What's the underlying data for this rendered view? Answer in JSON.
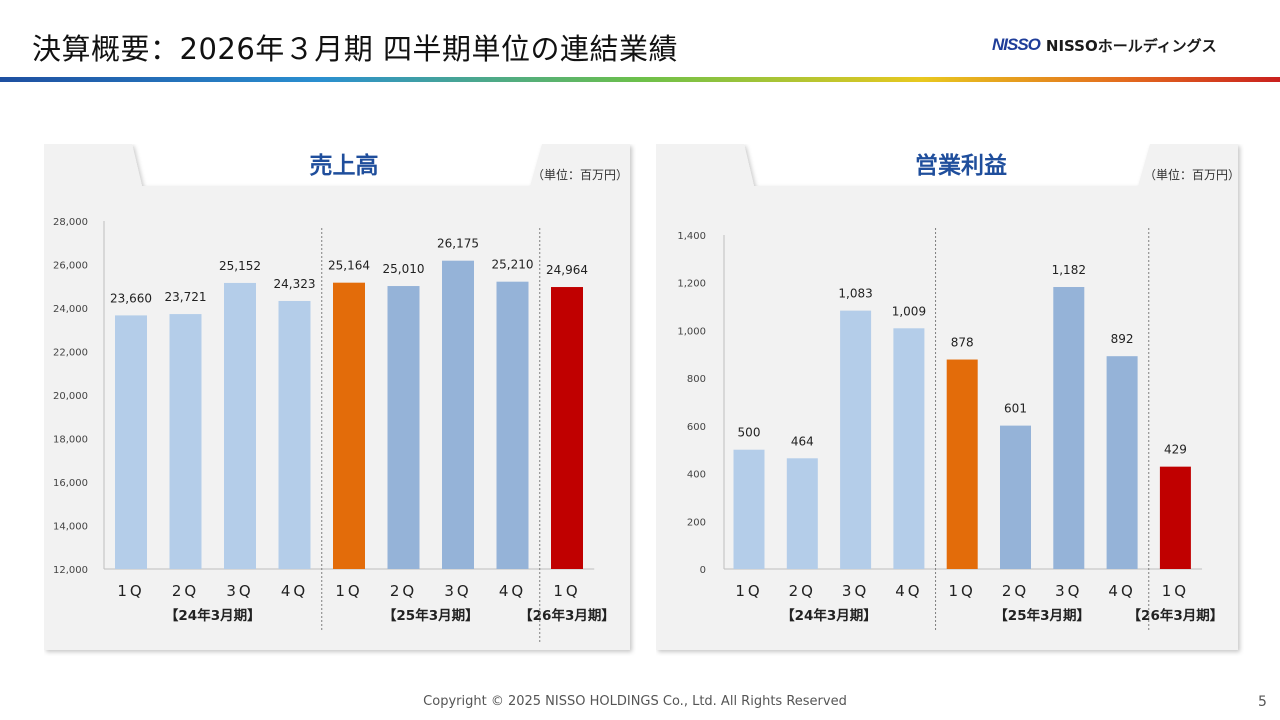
{
  "header": {
    "title": "決算概要：2026年３月期 四半期単位の連結業績",
    "logo_mark": "NISSO",
    "logo_text": "NISSOホールディングス"
  },
  "footer": {
    "copyright": "Copyright © 2025 NISSO HOLDINGS Co., Ltd. All Rights Reserved",
    "page": "5"
  },
  "colors": {
    "fy24": "#b4cde9",
    "fy25": "#95b3d8",
    "fy25_highlight": "#e36c0a",
    "fy26": "#c00000",
    "title_text": "#1f4e9c"
  },
  "chart_data": [
    {
      "type": "bar",
      "title": "売上高",
      "unit": "（単位：百万円）",
      "categories": [
        "1Q",
        "2Q",
        "3Q",
        "4Q",
        "1Q",
        "2Q",
        "3Q",
        "4Q",
        "1Q"
      ],
      "category_labels": [
        "1Q",
        "2Q",
        "3Q",
        "4Q",
        "1Q",
        "2Q",
        "3Q",
        "4Q",
        "1Q"
      ],
      "values": [
        23660,
        23721,
        25152,
        24323,
        25164,
        25010,
        26175,
        25210,
        24964
      ],
      "value_labels": [
        "23,660",
        "23,721",
        "25,152",
        "24,323",
        "25,164",
        "25,010",
        "26,175",
        "25,210",
        "24,964"
      ],
      "bar_colors": [
        "fy24",
        "fy24",
        "fy24",
        "fy24",
        "fy25_highlight",
        "fy25",
        "fy25",
        "fy25",
        "fy26"
      ],
      "groups": [
        {
          "label": "【24年3月期】",
          "start": 0,
          "end": 3
        },
        {
          "label": "【25年3月期】",
          "start": 4,
          "end": 7
        },
        {
          "label": "【26年3月期】",
          "start": 8,
          "end": 8
        }
      ],
      "ylim": [
        12000,
        28000
      ],
      "yticks": [
        12000,
        14000,
        16000,
        18000,
        20000,
        22000,
        24000,
        26000,
        28000
      ],
      "ytick_labels": [
        "12,000",
        "14,000",
        "16,000",
        "18,000",
        "20,000",
        "22,000",
        "24,000",
        "26,000",
        "28,000"
      ],
      "grid": false,
      "legend": "none"
    },
    {
      "type": "bar",
      "title": "営業利益",
      "unit": "（単位：百万円）",
      "categories": [
        "1Q",
        "2Q",
        "3Q",
        "4Q",
        "1Q",
        "2Q",
        "3Q",
        "4Q",
        "1Q"
      ],
      "category_labels": [
        "1Q",
        "2Q",
        "3Q",
        "4Q",
        "1Q",
        "2Q",
        "3Q",
        "4Q",
        "1Q"
      ],
      "values": [
        500,
        464,
        1083,
        1009,
        878,
        601,
        1182,
        892,
        429
      ],
      "value_labels": [
        "500",
        "464",
        "1,083",
        "1,009",
        "878",
        "601",
        "1,182",
        "892",
        "429"
      ],
      "bar_colors": [
        "fy24",
        "fy24",
        "fy24",
        "fy24",
        "fy25_highlight",
        "fy25",
        "fy25",
        "fy25",
        "fy26"
      ],
      "groups": [
        {
          "label": "【24年3月期】",
          "start": 0,
          "end": 3
        },
        {
          "label": "【25年3月期】",
          "start": 4,
          "end": 7
        },
        {
          "label": "【26年3月期】",
          "start": 8,
          "end": 8
        }
      ],
      "ylim": [
        0,
        1400
      ],
      "yticks": [
        0,
        200,
        400,
        600,
        800,
        1000,
        1200,
        1400
      ],
      "ytick_labels": [
        "0",
        "200",
        "400",
        "600",
        "800",
        "1,000",
        "1,200",
        "1,400"
      ],
      "grid": false,
      "legend": "none"
    }
  ]
}
